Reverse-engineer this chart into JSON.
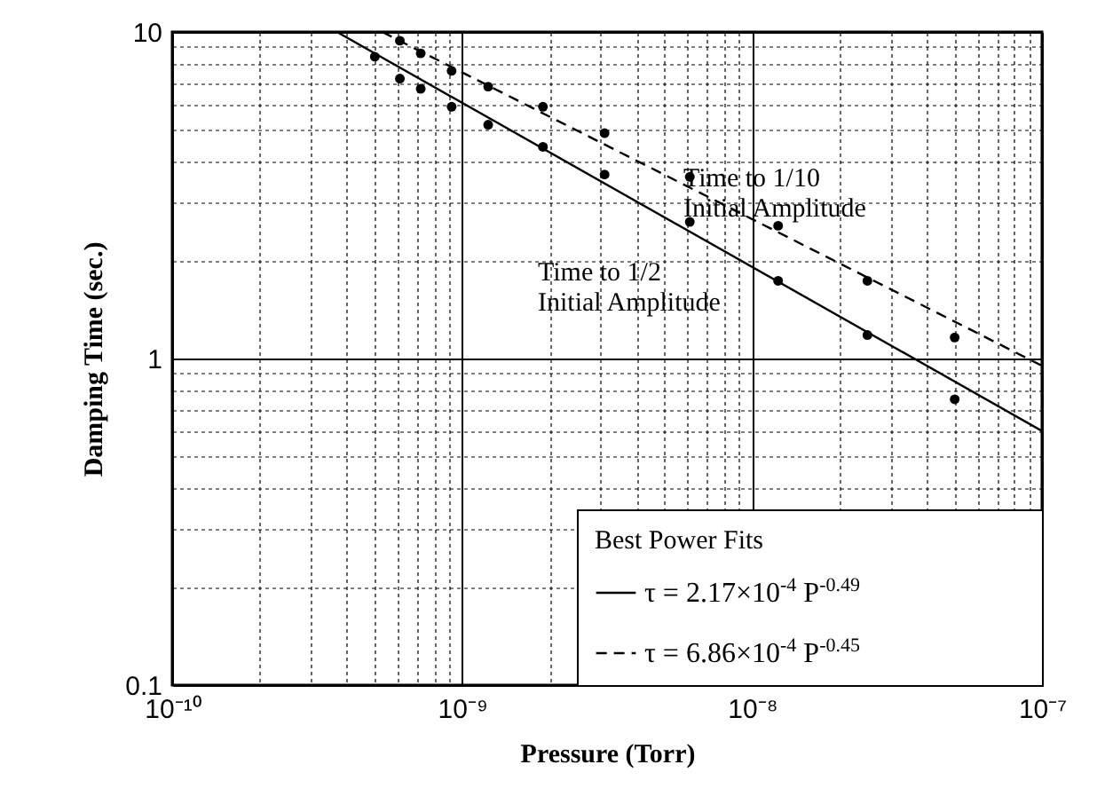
{
  "chart_data": {
    "type": "scatter",
    "xlabel": "Pressure (Torr)",
    "ylabel": "Damping Time (sec.)",
    "log": "xy",
    "grid": true,
    "marker": "circle",
    "legend": "bottom right",
    "legend_title": "Best Power Fits",
    "xlim": [
      1e-10,
      1e-07
    ],
    "ylim": [
      0.1,
      10
    ],
    "xticks": [
      {
        "value": 1e-10,
        "label": "10⁻¹⁰"
      },
      {
        "value": 2e-10,
        "label": null
      },
      {
        "value": 3e-10,
        "label": null
      },
      {
        "value": 4e-10,
        "label": null
      },
      {
        "value": 5e-10,
        "label": null
      },
      {
        "value": 6e-10,
        "label": null
      },
      {
        "value": 7e-10,
        "label": null
      },
      {
        "value": 8e-10,
        "label": null
      },
      {
        "value": 9e-10,
        "label": null
      },
      {
        "value": 1e-09,
        "label": "10⁻⁹"
      },
      {
        "value": 2e-09,
        "label": null
      },
      {
        "value": 3e-09,
        "label": null
      },
      {
        "value": 4e-09,
        "label": null
      },
      {
        "value": 5e-09,
        "label": null
      },
      {
        "value": 6e-09,
        "label": null
      },
      {
        "value": 7e-09,
        "label": null
      },
      {
        "value": 8e-09,
        "label": null
      },
      {
        "value": 9e-09,
        "label": null
      },
      {
        "value": 1e-08,
        "label": "10⁻⁸"
      },
      {
        "value": 2e-08,
        "label": null
      },
      {
        "value": 3e-08,
        "label": null
      },
      {
        "value": 4e-08,
        "label": null
      },
      {
        "value": 5e-08,
        "label": null
      },
      {
        "value": 6e-08,
        "label": null
      },
      {
        "value": 7e-08,
        "label": null
      },
      {
        "value": 8e-08,
        "label": null
      },
      {
        "value": 9e-08,
        "label": null
      },
      {
        "value": 1e-07,
        "label": "10⁻⁷"
      }
    ],
    "yticks": [
      0.1,
      {
        "value": 0.2,
        "label": null
      },
      {
        "value": 0.3,
        "label": null
      },
      {
        "value": 0.4,
        "label": null
      },
      {
        "value": 0.5,
        "label": null
      },
      {
        "value": 0.6,
        "label": null
      },
      {
        "value": 0.7,
        "label": null
      },
      {
        "value": 0.8,
        "label": null
      },
      {
        "value": 0.9,
        "label": null
      },
      1,
      {
        "value": 2,
        "label": null
      },
      {
        "value": 3,
        "label": null
      },
      {
        "value": 4,
        "label": null
      },
      {
        "value": 5,
        "label": null
      },
      {
        "value": 6,
        "label": null
      },
      {
        "value": 7,
        "label": null
      },
      {
        "value": 8,
        "label": null
      },
      {
        "value": 9,
        "label": null
      },
      10
    ],
    "series": [
      {
        "color": "#000000",
        "x": [
          5e-10,
          6.1e-10,
          7.2e-10,
          9.2e-10,
          1.23e-09,
          1.9e-09,
          3.1e-09,
          6.1e-09,
          1.23e-08,
          2.5e-08,
          5e-08
        ],
        "values": [
          8.4,
          7.2,
          6.7,
          5.9,
          5.2,
          4.45,
          3.66,
          2.62,
          1.73,
          1.18,
          0.75
        ]
      },
      {
        "color": "#000000",
        "x": [
          6.1e-10,
          7.2e-10,
          9.2e-10,
          1.23e-09,
          1.9e-09,
          3.1e-09,
          6.1e-09,
          1.23e-08,
          2.5e-08,
          5e-08
        ],
        "values": [
          9.4,
          8.6,
          7.6,
          6.8,
          5.9,
          4.9,
          3.6,
          2.55,
          1.73,
          1.16
        ]
      },
      {
        "type": "line",
        "name": "τ = 2.17×10$^{-4}$ P$^{-0.49}$",
        "color": "#000000",
        "line_style": "solid",
        "marker": "none",
        "x": [
          3.7e-10,
          1e-07
        ],
        "values": [
          10,
          0.6
        ]
      },
      {
        "type": "line",
        "name": "τ = 6.86×10$^{-4}$ P$^{-0.45}$",
        "color": "#000000",
        "line_style": "dashed",
        "marker": "none",
        "x": [
          5.3e-10,
          1e-07
        ],
        "values": [
          10,
          0.95
        ]
      }
    ],
    "annotations": [
      "Time to 1/10\nInitial Amplitude",
      "Time to 1/2\nInitial Amplitude"
    ]
  }
}
